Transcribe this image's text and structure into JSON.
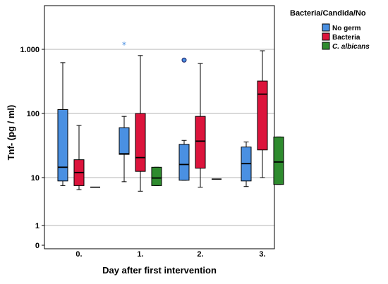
{
  "chart_data": {
    "type": "boxplot",
    "xlabel": "Day after first intervention",
    "ylabel": "Tnf- (pg / ml)",
    "y_scale": "log",
    "ylim": [
      0.5,
      5000
    ],
    "y_ticks": [
      {
        "value": 1000,
        "label": "1.000"
      },
      {
        "value": 100,
        "label": "100"
      },
      {
        "value": 10,
        "label": "10"
      },
      {
        "value": 1,
        "label": "1"
      },
      {
        "value": 0.6,
        "label": "0"
      }
    ],
    "grid": "horizontal",
    "legend": {
      "title": "Bacteria/Candida/No",
      "position": "top-right",
      "entries": [
        {
          "label": "No germ",
          "color": "#4a90e2",
          "italic": false
        },
        {
          "label": "Bacteria",
          "color": "#dc143c",
          "italic": false
        },
        {
          "label": "C. albicans",
          "color": "#2e8b2e",
          "italic": true
        }
      ]
    },
    "categories": [
      "0.",
      "1.",
      "2.",
      "3."
    ],
    "series": [
      {
        "name": "No germ",
        "color": "#4a90e2",
        "boxes": [
          {
            "min": 6.8,
            "q1": 8.5,
            "median": 14.5,
            "q3": 115,
            "max": 620
          },
          {
            "min": 8.2,
            "q1": 23,
            "median": 23.5,
            "q3": 60,
            "max": 90
          },
          {
            "min": 8.8,
            "q1": 8.8,
            "median": 16,
            "q3": 33,
            "max": 38
          },
          {
            "min": 6.5,
            "q1": 8.5,
            "median": 16.5,
            "q3": 30,
            "max": 36
          }
        ],
        "outliers": [
          {
            "category": "2.",
            "value": 680,
            "marker": "circle"
          }
        ],
        "extremes": [
          {
            "category": "1.",
            "value": 1200,
            "marker": "star"
          }
        ]
      },
      {
        "name": "Bacteria",
        "color": "#dc143c",
        "boxes": [
          {
            "min": 5.6,
            "q1": 6.8,
            "median": 12,
            "q3": 19,
            "max": 65
          },
          {
            "min": 5.2,
            "q1": 12.5,
            "median": 20.5,
            "q3": 100,
            "max": 800
          },
          {
            "min": 6.3,
            "q1": 14,
            "median": 37,
            "q3": 90,
            "max": 600
          },
          {
            "min": 10,
            "q1": 27,
            "median": 200,
            "q3": 320,
            "max": 950
          }
        ],
        "outliers": [],
        "extremes": []
      },
      {
        "name": "C. albicans",
        "color": "#2e8b2e",
        "boxes": [
          {
            "min": 6.3,
            "q1": 6.3,
            "median": 6.3,
            "q3": 6.3,
            "max": 6.3
          },
          {
            "min": 6.8,
            "q1": 6.8,
            "median": 9.8,
            "q3": 14.5,
            "max": 14.5
          },
          {
            "min": 9.3,
            "q1": 9.3,
            "median": 9.3,
            "q3": 9.3,
            "max": 9.3
          },
          {
            "min": 7.2,
            "q1": 7.2,
            "median": 17.5,
            "q3": 43,
            "max": 43
          }
        ],
        "outliers": [],
        "extremes": []
      }
    ]
  }
}
